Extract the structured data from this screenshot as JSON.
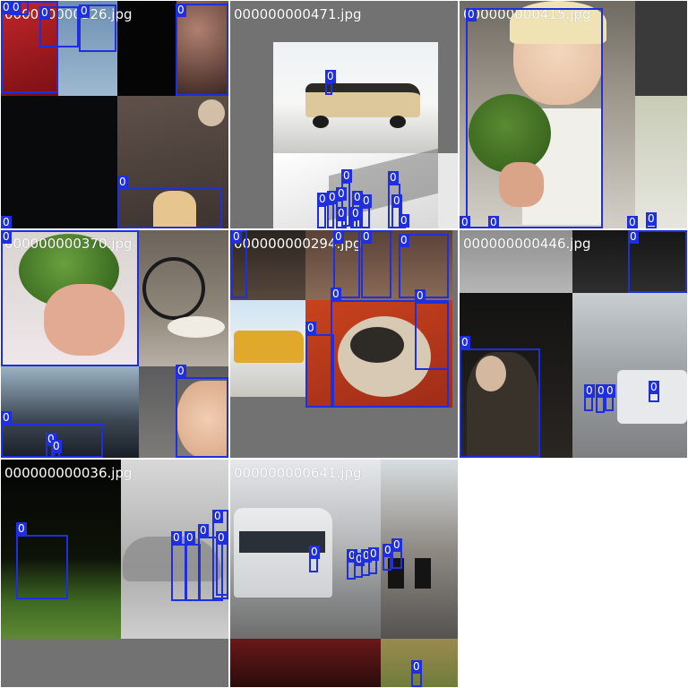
{
  "viewer": {
    "title": "",
    "accent_color": "#1f2fe0",
    "empty_tile_color": "#727272",
    "tile_filenames": [
      "000000000326.jpg",
      "000000000471.jpg",
      "000000000415.jpg",
      "000000000370.jpg",
      "000000000294.jpg",
      "000000000446.jpg",
      "000000000036.jpg",
      "000000000641.jpg"
    ]
  },
  "detections": {
    "class_label": "0"
  }
}
